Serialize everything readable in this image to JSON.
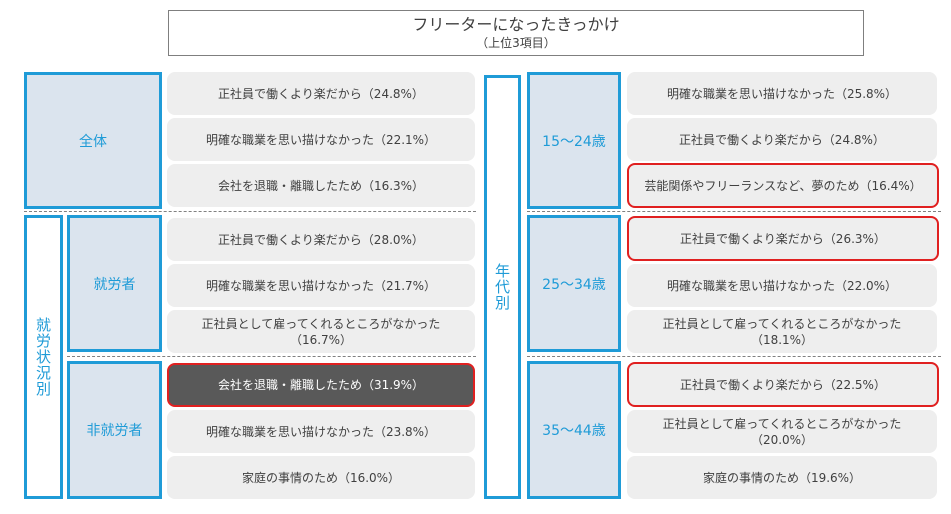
{
  "title": {
    "main": "フリーターになったきっかけ",
    "sub": "（上位3項目）"
  },
  "left": {
    "overall": {
      "label": "全体",
      "items": [
        "正社員で働くより楽だから（24.8%）",
        "明確な職業を思い描けなかった（22.1%）",
        "会社を退職・離職したため（16.3%）"
      ]
    },
    "group_label": "就労状況別",
    "employed": {
      "label": "就労者",
      "items": [
        "正社員で働くより楽だから（28.0%）",
        "明確な職業を思い描けなかった（21.7%）",
        "正社員として雇ってくれるところがなかった（16.7%）"
      ]
    },
    "unemployed": {
      "label": "非就労者",
      "items": [
        "会社を退職・離職したため（31.9%）",
        "明確な職業を思い描けなかった（23.8%）",
        "家庭の事情のため（16.0%）"
      ]
    }
  },
  "right": {
    "group_label": "年代別",
    "age15_24": {
      "label": "15～24歳",
      "items": [
        "明確な職業を思い描けなかった（25.8%）",
        "正社員で働くより楽だから（24.8%）",
        "芸能関係やフリーランスなど、夢のため（16.4%）"
      ]
    },
    "age25_34": {
      "label": "25～34歳",
      "items": [
        "正社員で働くより楽だから（26.3%）",
        "明確な職業を思い描けなかった（22.0%）",
        "正社員として雇ってくれるところがなかった（18.1%）"
      ]
    },
    "age35_44": {
      "label": "35～44歳",
      "items": [
        "正社員で働くより楽だから（22.5%）",
        "正社員として雇ってくれるところがなかった（20.0%）",
        "家庭の事情のため（19.6%）"
      ]
    }
  },
  "chart_data": {
    "type": "table",
    "title": "フリーターになったきっかけ",
    "subtitle": "（上位3項目）",
    "groups": [
      {
        "name": "全体",
        "rows": [
          [
            "正社員で働くより楽だから",
            24.8
          ],
          [
            "明確な職業を思い描けなかった",
            22.1
          ],
          [
            "会社を退職・離職したため",
            16.3
          ]
        ]
      },
      {
        "name": "就労者",
        "rows": [
          [
            "正社員で働くより楽だから",
            28.0
          ],
          [
            "明確な職業を思い描けなかった",
            21.7
          ],
          [
            "正社員として雇ってくれるところがなかった",
            16.7
          ]
        ]
      },
      {
        "name": "非就労者",
        "rows": [
          [
            "会社を退職・離職したため",
            31.9
          ],
          [
            "明確な職業を思い描けなかった",
            23.8
          ],
          [
            "家庭の事情のため",
            16.0
          ]
        ]
      },
      {
        "name": "15～24歳",
        "rows": [
          [
            "明確な職業を思い描けなかった",
            25.8
          ],
          [
            "正社員で働くより楽だから",
            24.8
          ],
          [
            "芸能関係やフリーランスなど、夢のため",
            16.4
          ]
        ]
      },
      {
        "name": "25～34歳",
        "rows": [
          [
            "正社員で働くより楽だから",
            26.3
          ],
          [
            "明確な職業を思い描けなかった",
            22.0
          ],
          [
            "正社員として雇ってくれるところがなかった",
            18.1
          ]
        ]
      },
      {
        "name": "35～44歳",
        "rows": [
          [
            "正社員で働くより楽だから",
            22.5
          ],
          [
            "正社員として雇ってくれるところがなかった",
            20.0
          ],
          [
            "家庭の事情のため",
            19.6
          ]
        ]
      }
    ],
    "colors": {
      "accent": "#1f9bd7",
      "highlight_border": "#e02020",
      "highlight_fill": "#595959",
      "cell_bg": "#eeeeee",
      "label_bg": "#dbe4ee"
    }
  }
}
